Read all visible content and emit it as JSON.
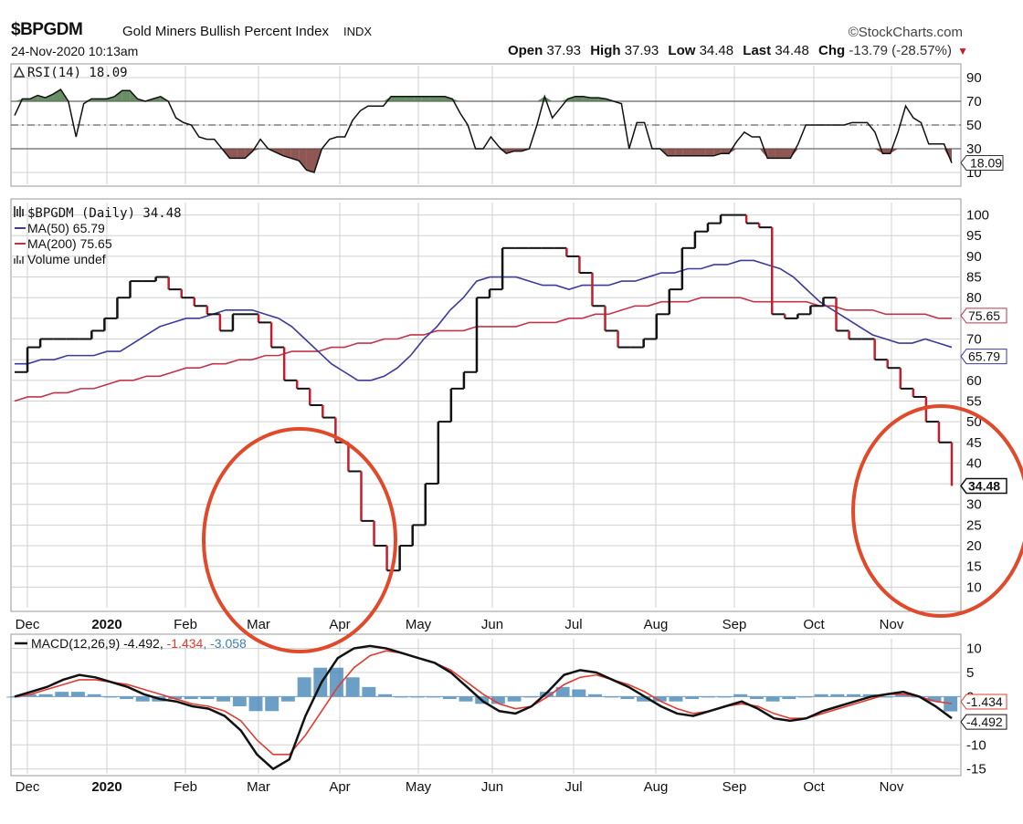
{
  "header": {
    "symbol": "$BPGDM",
    "title": "Gold Miners Bullish Percent Index",
    "exchange": "INDX",
    "datetime": "24-Nov-2020 10:13am",
    "brand": "©StockCharts.com",
    "open_label": "Open",
    "open": "37.93",
    "high_label": "High",
    "high": "37.93",
    "low_label": "Low",
    "low": "34.48",
    "last_label": "Last",
    "last": "34.48",
    "chg_label": "Chg",
    "chg": "-13.79 (-28.57%)"
  },
  "colors": {
    "up": "#111111",
    "down": "#c0202d",
    "ma50": "#3b3b9e",
    "ma200": "#c2344a",
    "rsi_over": "#4e7a4a",
    "rsi_under": "#7a3a36",
    "macd_hist": "#3b7fb2",
    "signal": "#e03c31",
    "annotation": "#e04a2a",
    "grid": "#d0d0d0"
  },
  "icons": {
    "rsi": "triangle-chart-icon",
    "price": "candle-icon",
    "volume": "volume-bars-icon"
  },
  "x_axis_labels": [
    "Dec",
    "2020",
    "Feb",
    "Mar",
    "Apr",
    "May",
    "Jun",
    "Jul",
    "Aug",
    "Sep",
    "Oct",
    "Nov"
  ],
  "chart_data": [
    {
      "panel": "rsi",
      "type": "area",
      "legend": "RSI(14) 18.09",
      "ylim": [
        0,
        100
      ],
      "y_ticks": [
        "90",
        "70",
        "50",
        "30",
        "10"
      ],
      "reference_lines": [
        70,
        50,
        30
      ],
      "last_value_tag": "18.09",
      "series": [
        {
          "values": [
            58,
            72,
            72,
            75,
            73,
            76,
            80,
            70,
            40,
            68,
            72,
            72,
            72,
            74,
            79,
            79,
            72,
            70,
            72,
            74,
            70,
            56,
            52,
            50,
            40,
            38,
            38,
            30,
            22,
            22,
            22,
            28,
            38,
            30,
            27,
            24,
            22,
            20,
            12,
            10,
            30,
            38,
            40,
            40,
            54,
            62,
            66,
            66,
            66,
            74,
            74,
            74,
            74,
            74,
            74,
            74,
            74,
            72,
            60,
            50,
            30,
            30,
            40,
            32,
            26,
            28,
            28,
            30,
            50,
            74,
            56,
            64,
            72,
            74,
            74,
            73,
            73,
            72,
            70,
            68,
            30,
            52,
            52,
            30,
            30,
            24,
            24,
            24,
            24,
            24,
            24,
            24,
            26,
            26,
            36,
            44,
            40,
            40,
            22,
            22,
            22,
            22,
            34,
            50,
            50,
            50,
            50,
            50,
            50,
            52,
            52,
            52,
            44,
            26,
            26,
            44,
            66,
            56,
            52,
            34,
            34,
            34,
            18
          ]
        }
      ]
    },
    {
      "panel": "price",
      "type": "line",
      "legend_symbol": "$BPGDM (Daily) 34.48",
      "ylim": [
        5,
        103
      ],
      "y_ticks": [
        "100",
        "95",
        "90",
        "85",
        "80",
        "75",
        "70",
        "65",
        "60",
        "55",
        "50",
        "45",
        "40",
        "35",
        "30",
        "25",
        "20",
        "15",
        "10"
      ],
      "last_value_tag": "34.48",
      "series": [
        {
          "name": "MA(50) 65.79",
          "values": [
            64,
            64,
            65,
            65,
            66,
            66,
            66,
            67,
            67,
            69,
            71,
            73,
            74,
            75,
            75,
            76,
            77,
            77,
            77,
            76,
            75,
            73,
            70,
            67,
            64,
            62,
            60,
            60,
            61,
            63,
            66,
            70,
            73,
            77,
            80,
            84,
            85,
            85,
            85,
            84,
            83,
            83,
            82,
            83,
            83,
            83,
            84,
            84,
            85,
            86,
            86,
            87,
            87,
            88,
            88,
            89,
            89,
            88,
            87,
            85,
            82,
            79,
            77,
            75,
            73,
            71,
            70,
            69,
            69,
            70,
            69,
            68
          ]
        },
        {
          "name": "MA(200) 75.65",
          "values": [
            55,
            56,
            56,
            57,
            57,
            58,
            58,
            59,
            60,
            60,
            61,
            61,
            62,
            63,
            63,
            64,
            64,
            65,
            65,
            66,
            66,
            67,
            67,
            67,
            68,
            68,
            69,
            69,
            70,
            70,
            71,
            71,
            72,
            72,
            72,
            73,
            73,
            73,
            73,
            74,
            74,
            74,
            75,
            75,
            76,
            76,
            77,
            78,
            78,
            79,
            79,
            79,
            80,
            80,
            80,
            80,
            79,
            79,
            79,
            79,
            79,
            78,
            78,
            77,
            77,
            77,
            76,
            76,
            76,
            76,
            75,
            75
          ]
        },
        {
          "name": "$BPGDM",
          "values": [
            62,
            68,
            70,
            70,
            70,
            70,
            72,
            75,
            80,
            84,
            84,
            85,
            82,
            80,
            78,
            76,
            72,
            76,
            76,
            74,
            68,
            60,
            58,
            54,
            51,
            45,
            38,
            26,
            20,
            14,
            20,
            25,
            35,
            50,
            58,
            62,
            80,
            82,
            92,
            92,
            92,
            92,
            92,
            90,
            86,
            78,
            72,
            68,
            68,
            70,
            76,
            82,
            92,
            96,
            98,
            100,
            100,
            98,
            97,
            76,
            75,
            76,
            78,
            80,
            72,
            70,
            70,
            65,
            63,
            58,
            56,
            50,
            45,
            34.48
          ]
        },
        {
          "name": "Volume undef",
          "values": []
        }
      ]
    },
    {
      "panel": "macd",
      "type": "line",
      "legend_name": "MACD(12,26,9) -4.492",
      "legend_signal": "-1.434",
      "legend_hist": "-3.058",
      "ylim": [
        -16,
        12
      ],
      "y_ticks": [
        "10",
        "5",
        "0",
        "-5",
        "-10",
        "-15"
      ],
      "last_value_tags": [
        "-1.434",
        "-4.492"
      ],
      "series": [
        {
          "name": "MACD",
          "values": [
            0,
            1,
            2,
            3.5,
            4.5,
            4,
            3,
            2,
            0.5,
            -0.5,
            -1,
            -2,
            -2.5,
            -4,
            -7,
            -12,
            -15,
            -13,
            -4,
            3,
            8,
            10,
            10.5,
            10,
            9,
            8,
            7,
            5,
            2,
            -1,
            -3,
            -3.5,
            -2,
            1,
            4.5,
            5.5,
            5,
            3.5,
            2,
            0,
            -2,
            -3.5,
            -4,
            -3,
            -2,
            -1,
            -2.5,
            -4.5,
            -5,
            -4.5,
            -3,
            -2,
            -1,
            0,
            0.5,
            1,
            0,
            -2,
            -4.492
          ]
        },
        {
          "name": "Signal",
          "values": [
            0,
            0.5,
            1.5,
            2.5,
            3.5,
            3.5,
            3,
            2.5,
            1.5,
            0.5,
            -0.5,
            -1.5,
            -2,
            -3,
            -5,
            -9,
            -12,
            -12,
            -8,
            -3,
            2,
            6,
            8.5,
            9.5,
            9,
            8,
            7,
            5.5,
            3,
            0.5,
            -1.5,
            -2.5,
            -2,
            0,
            2.5,
            4,
            4.5,
            3.5,
            2.5,
            1,
            -1,
            -2.5,
            -3.5,
            -3,
            -2,
            -1.5,
            -2,
            -3.5,
            -4.5,
            -4.5,
            -3.5,
            -2.5,
            -1.5,
            -0.5,
            0.5,
            0.5,
            0,
            -1,
            -1.434
          ]
        },
        {
          "name": "Histogram",
          "values": [
            0,
            0.5,
            0.5,
            1,
            1,
            0.5,
            0,
            -0.5,
            -1,
            -1,
            -0.5,
            -0.5,
            -0.5,
            -1,
            -2,
            -3,
            -3,
            -1,
            4,
            6,
            6,
            4,
            2,
            0.5,
            0,
            0,
            0,
            -0.5,
            -1,
            -1.5,
            -1.5,
            -1,
            0,
            1,
            2,
            1.5,
            0.5,
            0,
            -0.5,
            -1,
            -1,
            -1,
            -0.5,
            0,
            0,
            0.5,
            -0.5,
            -1,
            -0.5,
            0,
            0.5,
            0.5,
            0.5,
            0.5,
            0,
            0.5,
            0,
            -1,
            -3.058
          ]
        }
      ]
    }
  ]
}
